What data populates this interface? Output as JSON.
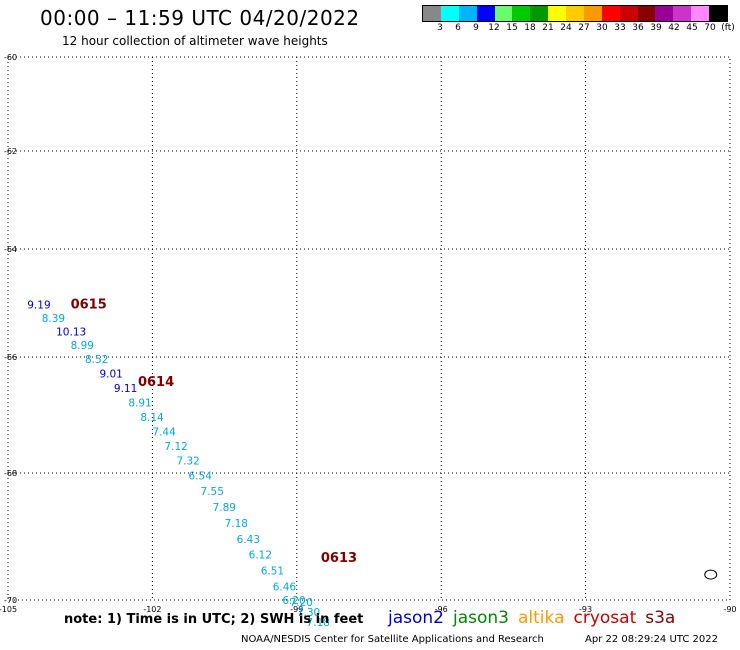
{
  "header": {
    "title": "00:00 – 11:59 UTC 04/20/2022",
    "subtitle": "12 hour collection of altimeter wave heights"
  },
  "legend": {
    "colors": [
      "#888888",
      "#00ffff",
      "#00b4ff",
      "#0000ff",
      "#66ff66",
      "#00cc00",
      "#009900",
      "#ffff00",
      "#ffcc00",
      "#ff9900",
      "#ff0000",
      "#cc0000",
      "#880000",
      "#990099",
      "#cc33cc",
      "#ff88ff",
      "#000000"
    ],
    "labels": [
      "3",
      "6",
      "9",
      "12",
      "15",
      "18",
      "21",
      "24",
      "27",
      "30",
      "33",
      "36",
      "39",
      "42",
      "45",
      "70",
      "(ft)"
    ]
  },
  "axes": {
    "lon_ticks": [
      "-105",
      "-102",
      "-99",
      "-96",
      "-93",
      "-90"
    ],
    "lat_ticks": [
      "-60",
      "-62",
      "-64",
      "-66",
      "-68",
      "-70"
    ],
    "lon_range": [
      -105,
      -90
    ],
    "lat_range": [
      -60,
      -70
    ]
  },
  "chart_data": {
    "type": "scatter",
    "x_label": "longitude",
    "y_label": "latitude",
    "xlim": [
      -105,
      -90
    ],
    "ylim": [
      -70,
      -60
    ],
    "grid": true,
    "passes": [
      {
        "label": "0615",
        "lon": -103.7,
        "lat": -65.1
      },
      {
        "label": "0614",
        "lon": -102.3,
        "lat": -66.5
      },
      {
        "label": "0613",
        "lon": -98.5,
        "lat": -69.4
      }
    ],
    "points": [
      {
        "value": "9.19",
        "lon": -104.6,
        "lat": -65.1,
        "color": "#0000cc"
      },
      {
        "value": "8.39",
        "lon": -104.3,
        "lat": -65.35,
        "color": "#00aadd"
      },
      {
        "value": "10.13",
        "lon": -104.0,
        "lat": -65.6,
        "color": "#0000cc"
      },
      {
        "value": "8.99",
        "lon": -103.7,
        "lat": -65.85,
        "color": "#00aadd"
      },
      {
        "value": "8.52",
        "lon": -103.4,
        "lat": -66.1,
        "color": "#00aadd"
      },
      {
        "value": "9.01",
        "lon": -103.1,
        "lat": -66.35,
        "color": "#0000cc"
      },
      {
        "value": "9.11",
        "lon": -102.8,
        "lat": -66.6,
        "color": "#0000cc"
      },
      {
        "value": "8.91",
        "lon": -102.5,
        "lat": -66.85,
        "color": "#00aadd"
      },
      {
        "value": "8.14",
        "lon": -102.25,
        "lat": -67.1,
        "color": "#00aadd"
      },
      {
        "value": "7.44",
        "lon": -102.0,
        "lat": -67.35,
        "color": "#00aadd"
      },
      {
        "value": "7.12",
        "lon": -101.75,
        "lat": -67.6,
        "color": "#00aadd"
      },
      {
        "value": "7.32",
        "lon": -101.5,
        "lat": -67.85,
        "color": "#00aadd"
      },
      {
        "value": "6.54",
        "lon": -101.25,
        "lat": -68.1,
        "color": "#00aadd"
      },
      {
        "value": "7.55",
        "lon": -101.0,
        "lat": -68.35,
        "color": "#00aadd"
      },
      {
        "value": "7.89",
        "lon": -100.75,
        "lat": -68.6,
        "color": "#00aadd"
      },
      {
        "value": "7.18",
        "lon": -100.5,
        "lat": -68.85,
        "color": "#00aadd"
      },
      {
        "value": "6.43",
        "lon": -100.25,
        "lat": -69.1,
        "color": "#00aadd"
      },
      {
        "value": "6.12",
        "lon": -100.0,
        "lat": -69.35,
        "color": "#00aadd"
      },
      {
        "value": "6.51",
        "lon": -99.75,
        "lat": -69.6,
        "color": "#00aadd"
      },
      {
        "value": "6.46",
        "lon": -99.5,
        "lat": -69.85,
        "color": "#00aadd"
      },
      {
        "value": "6.20",
        "lon": -99.3,
        "lat": -70.1,
        "color": "#00aadd"
      },
      {
        "value": "7.20",
        "lon": -99.15,
        "lat": -70.15,
        "color": "#00aadd"
      },
      {
        "value": "7.30",
        "lon": -99.0,
        "lat": -70.4,
        "color": "#00aadd"
      },
      {
        "value": "7.18",
        "lon": -98.8,
        "lat": -70.65,
        "color": "#00aadd"
      }
    ]
  },
  "island": {
    "label": "",
    "lon": -90.4,
    "lat": -69.6
  },
  "footer": {
    "note": "note: 1) Time is in UTC; 2) SWH is in feet",
    "satellites": [
      {
        "name": "jason2",
        "color": "#0000cc"
      },
      {
        "name": "jason3",
        "color": "#008800"
      },
      {
        "name": "altika",
        "color": "#ff9900"
      },
      {
        "name": "cryosat",
        "color": "#cc0000"
      },
      {
        "name": "s3a",
        "color": "#880000"
      }
    ],
    "credit": "NOAA/NESDIS Center for Satellite Applications and Research",
    "timestamp": "Apr 22 08:29:24 UTC 2022"
  }
}
